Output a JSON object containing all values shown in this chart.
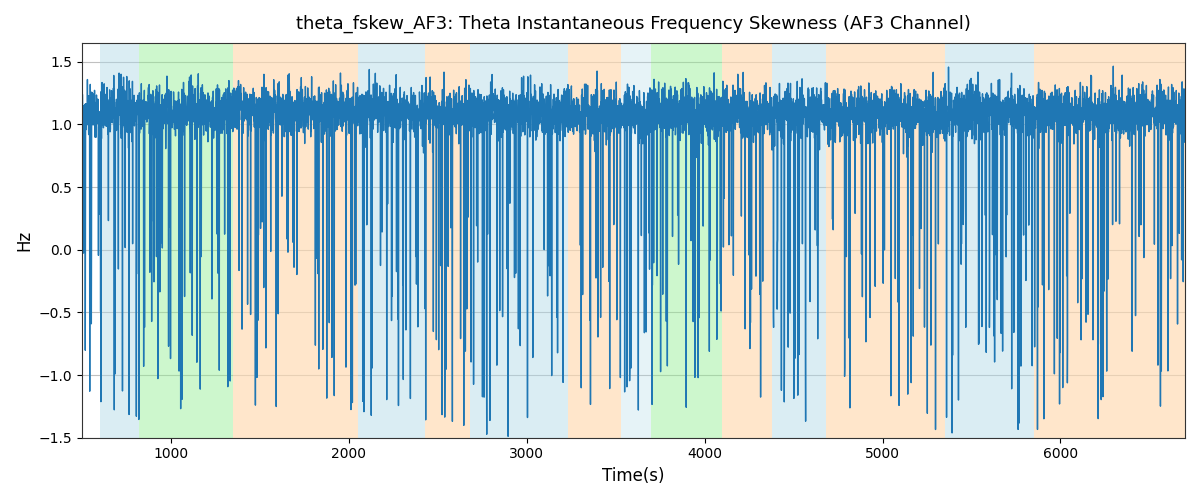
{
  "title": "theta_fskew_AF3: Theta Instantaneous Frequency Skewness (AF3 Channel)",
  "xlabel": "Time(s)",
  "ylabel": "Hz",
  "xlim": [
    500,
    6700
  ],
  "ylim": [
    -1.5,
    1.65
  ],
  "yticks": [
    -1.5,
    -1.0,
    -0.5,
    0.0,
    0.5,
    1.0,
    1.5
  ],
  "xticks": [
    1000,
    2000,
    3000,
    4000,
    5000,
    6000
  ],
  "line_color": "#1f77b4",
  "line_width": 1.0,
  "grid_color": "#c0c0c0",
  "regions": [
    {
      "xmin": 600,
      "xmax": 820,
      "color": "#add8e6",
      "alpha": 0.45
    },
    {
      "xmin": 820,
      "xmax": 1350,
      "color": "#90ee90",
      "alpha": 0.45
    },
    {
      "xmin": 1350,
      "xmax": 2050,
      "color": "#ffdab0",
      "alpha": 0.65
    },
    {
      "xmin": 2050,
      "xmax": 2430,
      "color": "#add8e6",
      "alpha": 0.45
    },
    {
      "xmin": 2430,
      "xmax": 2680,
      "color": "#ffdab0",
      "alpha": 0.65
    },
    {
      "xmin": 2680,
      "xmax": 3230,
      "color": "#add8e6",
      "alpha": 0.45
    },
    {
      "xmin": 3230,
      "xmax": 3530,
      "color": "#ffdab0",
      "alpha": 0.65
    },
    {
      "xmin": 3530,
      "xmax": 3700,
      "color": "#add8e6",
      "alpha": 0.3
    },
    {
      "xmin": 3700,
      "xmax": 4100,
      "color": "#90ee90",
      "alpha": 0.45
    },
    {
      "xmin": 4100,
      "xmax": 4380,
      "color": "#ffdab0",
      "alpha": 0.65
    },
    {
      "xmin": 4380,
      "xmax": 4680,
      "color": "#add8e6",
      "alpha": 0.45
    },
    {
      "xmin": 4680,
      "xmax": 5350,
      "color": "#ffdab0",
      "alpha": 0.65
    },
    {
      "xmin": 5350,
      "xmax": 5850,
      "color": "#add8e6",
      "alpha": 0.45
    },
    {
      "xmin": 5850,
      "xmax": 5980,
      "color": "#ffdab0",
      "alpha": 0.65
    },
    {
      "xmin": 5980,
      "xmax": 6700,
      "color": "#ffdab0",
      "alpha": 0.65
    }
  ],
  "seed": 42,
  "n_points": 6200,
  "time_start": 500,
  "time_end": 6700
}
